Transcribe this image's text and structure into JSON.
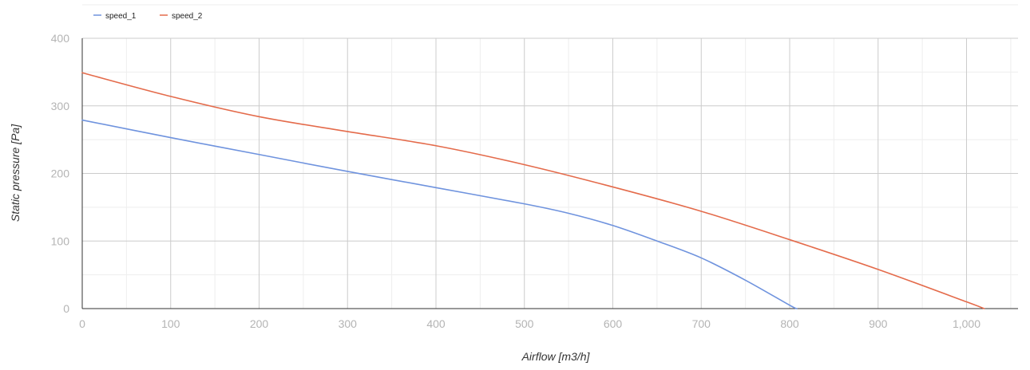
{
  "chart_data": {
    "type": "line",
    "title": "",
    "xlabel": "Airflow [m3/h]",
    "ylabel": "Static pressure [Pa]",
    "xlim": [
      0,
      1070
    ],
    "ylim": [
      0,
      400
    ],
    "x_ticks": [
      0,
      100,
      200,
      300,
      400,
      500,
      600,
      700,
      800,
      900,
      1000
    ],
    "x_tick_labels": [
      "0",
      "100",
      "200",
      "300",
      "400",
      "500",
      "600",
      "700",
      "800",
      "900",
      "1,000"
    ],
    "y_ticks": [
      0,
      100,
      200,
      300,
      400
    ],
    "y_tick_labels": [
      "0",
      "100",
      "200",
      "300",
      "400"
    ],
    "x_minor_step": 50,
    "y_minor_step": 50,
    "grid": true,
    "legend_position": "top-left",
    "series": [
      {
        "name": "speed_1",
        "color": "#6f93de",
        "x": [
          0,
          100,
          200,
          300,
          400,
          500,
          550,
          600,
          650,
          700,
          750,
          800,
          808
        ],
        "y": [
          279,
          253,
          228,
          203,
          179,
          155,
          141,
          123,
          100,
          75,
          42,
          5,
          0
        ]
      },
      {
        "name": "speed_2",
        "color": "#e46b4b",
        "x": [
          0,
          100,
          200,
          300,
          400,
          500,
          600,
          700,
          800,
          900,
          1000,
          1020
        ],
        "y": [
          349,
          314,
          284,
          262,
          241,
          213,
          180,
          144,
          102,
          58,
          10,
          0
        ]
      }
    ]
  }
}
